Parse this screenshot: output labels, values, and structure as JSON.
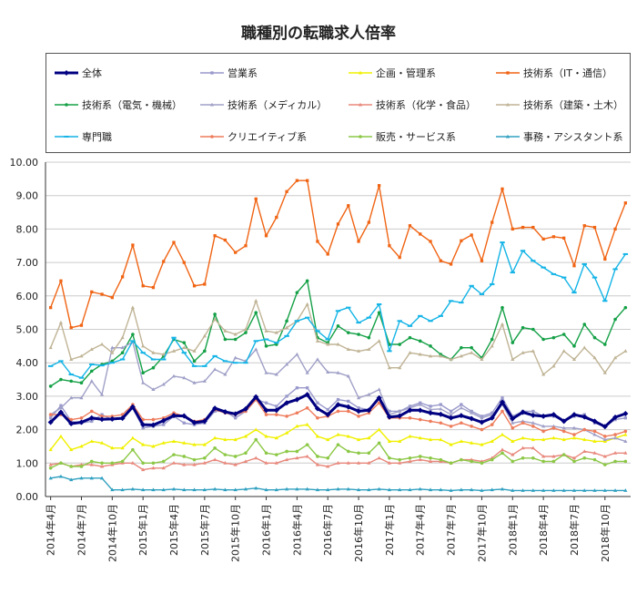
{
  "chart_data": {
    "type": "line",
    "title": "職種別の転職求人倍率",
    "xlabel": "",
    "ylabel": "",
    "ylim": [
      0,
      10
    ],
    "y_ticks": [
      "0.00",
      "1.00",
      "2.00",
      "3.00",
      "4.00",
      "5.00",
      "6.00",
      "7.00",
      "8.00",
      "9.00",
      "10.00"
    ],
    "grid": true,
    "legend_position": "top",
    "x": [
      "2014年4月",
      "2014年5月",
      "2014年6月",
      "2014年7月",
      "2014年8月",
      "2014年9月",
      "2014年10月",
      "2014年11月",
      "2014年12月",
      "2015年1月",
      "2015年2月",
      "2015年3月",
      "2015年4月",
      "2015年5月",
      "2015年6月",
      "2015年7月",
      "2015年8月",
      "2015年9月",
      "2015年10月",
      "2015年11月",
      "2015年12月",
      "2016年1月",
      "2016年2月",
      "2016年3月",
      "2016年4月",
      "2016年5月",
      "2016年6月",
      "2016年7月",
      "2016年8月",
      "2016年9月",
      "2016年10月",
      "2016年11月",
      "2016年12月",
      "2017年1月",
      "2017年2月",
      "2017年3月",
      "2017年4月",
      "2017年5月",
      "2017年6月",
      "2017年7月",
      "2017年8月",
      "2017年9月",
      "2017年10月",
      "2017年11月",
      "2017年12月",
      "2018年1月",
      "2018年2月",
      "2018年3月",
      "2018年4月",
      "2018年5月",
      "2018年6月",
      "2018年7月",
      "2018年8月",
      "2018年9月",
      "2018年10月",
      "2018年11月",
      "2018年12月"
    ],
    "x_tick_labels": [
      "2014年4月",
      "2014年7月",
      "2014年10月",
      "2015年1月",
      "2015年4月",
      "2015年7月",
      "2015年10月",
      "2016年1月",
      "2016年4月",
      "2016年7月",
      "2016年10月",
      "2017年1月",
      "2017年4月",
      "2017年7月",
      "2017年10月",
      "2018年1月",
      "2018年4月",
      "2018年7月",
      "2018年10月"
    ],
    "series": [
      {
        "name": "全体",
        "color": "#000080",
        "marker": "diamond",
        "bold": true,
        "values": [
          2.22,
          2.52,
          2.18,
          2.22,
          2.35,
          2.31,
          2.32,
          2.34,
          2.68,
          2.15,
          2.14,
          2.27,
          2.42,
          2.41,
          2.21,
          2.25,
          2.64,
          2.53,
          2.47,
          2.62,
          2.98,
          2.58,
          2.58,
          2.8,
          2.9,
          3.05,
          2.63,
          2.45,
          2.75,
          2.68,
          2.55,
          2.58,
          2.95,
          2.38,
          2.41,
          2.58,
          2.58,
          2.5,
          2.46,
          2.35,
          2.42,
          2.33,
          2.22,
          2.35,
          2.82,
          2.33,
          2.52,
          2.43,
          2.4,
          2.45,
          2.25,
          2.45,
          2.38,
          2.25,
          2.09,
          2.37,
          2.48
        ]
      },
      {
        "name": "営業系",
        "color": "#9999cc",
        "marker": "square",
        "values": [
          2.35,
          2.72,
          2.25,
          2.2,
          2.25,
          2.45,
          2.3,
          2.35,
          2.65,
          2.05,
          2.1,
          2.15,
          2.4,
          2.2,
          2.15,
          2.2,
          2.55,
          2.55,
          2.35,
          2.55,
          2.9,
          2.8,
          2.7,
          3.0,
          3.25,
          3.25,
          2.8,
          2.6,
          2.9,
          2.85,
          2.65,
          2.6,
          2.95,
          2.55,
          2.55,
          2.7,
          2.8,
          2.7,
          2.75,
          2.55,
          2.75,
          2.55,
          2.4,
          2.5,
          2.95,
          2.4,
          2.55,
          2.55,
          2.4,
          2.4,
          2.25,
          2.4,
          2.45,
          2.2,
          2.1,
          2.3,
          2.35
        ]
      },
      {
        "name": "企画・管理系",
        "color": "#f0f000",
        "marker": "triangle",
        "values": [
          1.4,
          1.8,
          1.4,
          1.5,
          1.65,
          1.6,
          1.45,
          1.45,
          1.75,
          1.55,
          1.5,
          1.6,
          1.65,
          1.6,
          1.55,
          1.55,
          1.75,
          1.7,
          1.7,
          1.8,
          2.0,
          1.8,
          1.75,
          1.9,
          2.1,
          2.15,
          1.8,
          1.7,
          1.85,
          1.8,
          1.7,
          1.75,
          2.0,
          1.65,
          1.65,
          1.8,
          1.75,
          1.7,
          1.7,
          1.55,
          1.65,
          1.6,
          1.55,
          1.65,
          1.85,
          1.65,
          1.75,
          1.7,
          1.7,
          1.75,
          1.7,
          1.75,
          1.7,
          1.65,
          1.65,
          1.75,
          1.85
        ]
      },
      {
        "name": "技術系（IT・通信）",
        "color": "#f06414",
        "marker": "square",
        "values": [
          5.65,
          6.45,
          5.05,
          5.12,
          6.12,
          6.05,
          5.95,
          6.57,
          7.52,
          6.3,
          6.25,
          7.03,
          7.6,
          7.0,
          6.3,
          6.35,
          7.8,
          7.67,
          7.3,
          7.5,
          8.9,
          7.8,
          8.35,
          9.12,
          9.45,
          9.45,
          7.63,
          7.25,
          8.15,
          8.7,
          7.63,
          8.2,
          9.3,
          7.5,
          7.15,
          8.1,
          7.85,
          7.63,
          7.05,
          6.95,
          7.65,
          7.82,
          7.05,
          8.2,
          9.2,
          8.0,
          8.05,
          8.05,
          7.7,
          7.77,
          7.73,
          6.9,
          8.1,
          8.05,
          7.1,
          8.0,
          8.78
        ]
      },
      {
        "name": "技術系（電気・機械）",
        "color": "#14a046",
        "marker": "circle",
        "values": [
          3.3,
          3.5,
          3.45,
          3.4,
          3.75,
          3.95,
          4.05,
          4.3,
          4.85,
          3.7,
          3.85,
          4.2,
          4.7,
          4.6,
          4.05,
          4.35,
          5.45,
          4.7,
          4.7,
          4.9,
          5.5,
          4.5,
          4.55,
          5.25,
          6.1,
          6.45,
          4.75,
          4.6,
          5.1,
          4.9,
          4.85,
          4.75,
          5.5,
          4.55,
          4.55,
          4.75,
          4.65,
          4.5,
          4.25,
          4.1,
          4.45,
          4.45,
          4.15,
          4.7,
          5.65,
          4.6,
          5.05,
          5.0,
          4.7,
          4.75,
          4.85,
          4.5,
          5.15,
          4.75,
          4.55,
          5.3,
          5.65
        ]
      },
      {
        "name": "技術系（メディカル）",
        "color": "#a0a0c8",
        "marker": "triangle",
        "values": [
          2.45,
          2.65,
          2.95,
          2.95,
          3.45,
          3.05,
          4.45,
          4.45,
          4.62,
          3.4,
          3.2,
          3.35,
          3.6,
          3.55,
          3.4,
          3.45,
          3.8,
          3.65,
          4.15,
          4.05,
          4.4,
          3.7,
          3.65,
          3.95,
          4.25,
          3.7,
          4.1,
          3.72,
          3.7,
          3.6,
          2.95,
          3.05,
          3.2,
          2.45,
          2.55,
          2.65,
          2.75,
          2.6,
          2.62,
          2.45,
          2.65,
          2.5,
          2.35,
          2.45,
          2.75,
          2.2,
          2.25,
          2.2,
          2.1,
          2.1,
          2.05,
          2.05,
          2.0,
          1.85,
          1.7,
          1.75,
          1.65
        ]
      },
      {
        "name": "技術系（化学・食品）",
        "color": "#e8887c",
        "marker": "triangle",
        "values": [
          0.95,
          1.0,
          0.9,
          0.95,
          0.95,
          0.9,
          0.95,
          1.0,
          1.0,
          0.8,
          0.85,
          0.85,
          1.0,
          0.95,
          0.95,
          1.0,
          1.1,
          1.0,
          0.95,
          1.05,
          1.15,
          1.0,
          1.0,
          1.1,
          1.15,
          1.2,
          0.95,
          0.9,
          1.0,
          1.0,
          1.0,
          1.0,
          1.15,
          1.0,
          1.0,
          1.05,
          1.1,
          1.05,
          1.05,
          1.0,
          1.1,
          1.1,
          1.05,
          1.15,
          1.4,
          1.25,
          1.45,
          1.45,
          1.2,
          1.2,
          1.25,
          1.15,
          1.35,
          1.3,
          1.2,
          1.3,
          1.3
        ]
      },
      {
        "name": "技術系（建築・土木）",
        "color": "#c0b496",
        "marker": "triangle",
        "values": [
          4.45,
          5.2,
          4.1,
          4.2,
          4.4,
          4.55,
          4.3,
          4.75,
          5.65,
          4.5,
          4.3,
          4.25,
          4.35,
          4.45,
          4.35,
          4.8,
          5.3,
          4.95,
          4.85,
          5.0,
          5.85,
          4.95,
          4.9,
          5.05,
          5.25,
          5.75,
          4.65,
          4.55,
          4.55,
          4.4,
          4.35,
          4.4,
          4.65,
          3.85,
          3.85,
          4.3,
          4.25,
          4.2,
          4.2,
          4.1,
          4.2,
          4.3,
          4.1,
          4.5,
          5.15,
          4.1,
          4.3,
          4.35,
          3.65,
          3.9,
          4.35,
          4.1,
          4.45,
          4.15,
          3.7,
          4.15,
          4.35
        ]
      },
      {
        "name": "専門職",
        "color": "#14b4e6",
        "marker": "dash",
        "values": [
          3.9,
          4.05,
          3.65,
          3.55,
          3.95,
          3.92,
          4.0,
          4.1,
          4.65,
          4.3,
          4.1,
          4.1,
          4.75,
          4.3,
          3.9,
          3.9,
          4.2,
          4.05,
          4.0,
          4.0,
          4.65,
          4.7,
          4.6,
          4.8,
          5.25,
          5.35,
          4.95,
          4.7,
          5.55,
          5.65,
          5.2,
          5.35,
          5.75,
          4.35,
          5.25,
          5.1,
          5.4,
          5.25,
          5.4,
          5.85,
          5.8,
          6.3,
          6.05,
          6.35,
          7.6,
          6.7,
          7.35,
          7.05,
          6.85,
          6.65,
          6.55,
          6.1,
          6.95,
          6.55,
          5.85,
          6.8,
          7.25
        ]
      },
      {
        "name": "クリエイティブ系",
        "color": "#ee7c5c",
        "marker": "circle",
        "values": [
          2.45,
          2.45,
          2.3,
          2.35,
          2.55,
          2.4,
          2.4,
          2.45,
          2.75,
          2.3,
          2.3,
          2.35,
          2.5,
          2.4,
          2.25,
          2.3,
          2.6,
          2.5,
          2.45,
          2.55,
          2.9,
          2.45,
          2.45,
          2.4,
          2.5,
          2.65,
          2.35,
          2.4,
          2.55,
          2.55,
          2.4,
          2.5,
          2.8,
          2.35,
          2.35,
          2.35,
          2.3,
          2.25,
          2.2,
          2.1,
          2.2,
          2.1,
          2.0,
          2.15,
          2.55,
          2.05,
          2.2,
          2.1,
          1.95,
          2.05,
          1.95,
          1.85,
          2.0,
          1.95,
          1.8,
          1.85,
          1.95
        ]
      },
      {
        "name": "販売・サービス系",
        "color": "#8cc846",
        "marker": "circle",
        "values": [
          0.85,
          1.0,
          0.9,
          0.9,
          1.05,
          1.0,
          1.0,
          1.05,
          1.4,
          1.0,
          1.0,
          1.05,
          1.25,
          1.2,
          1.1,
          1.15,
          1.45,
          1.25,
          1.2,
          1.3,
          1.7,
          1.3,
          1.25,
          1.35,
          1.35,
          1.55,
          1.2,
          1.15,
          1.55,
          1.35,
          1.3,
          1.3,
          1.6,
          1.15,
          1.1,
          1.15,
          1.2,
          1.15,
          1.1,
          1.0,
          1.1,
          1.05,
          1.0,
          1.1,
          1.3,
          1.05,
          1.15,
          1.15,
          1.05,
          1.05,
          1.25,
          1.05,
          1.15,
          1.1,
          0.95,
          1.05,
          1.05
        ]
      },
      {
        "name": "事務・アシスタント系",
        "color": "#30a0c0",
        "marker": "triangle",
        "values": [
          0.55,
          0.6,
          0.5,
          0.55,
          0.55,
          0.55,
          0.2,
          0.2,
          0.22,
          0.2,
          0.2,
          0.2,
          0.22,
          0.2,
          0.2,
          0.2,
          0.22,
          0.2,
          0.2,
          0.22,
          0.25,
          0.2,
          0.2,
          0.22,
          0.22,
          0.22,
          0.2,
          0.2,
          0.22,
          0.22,
          0.2,
          0.2,
          0.22,
          0.2,
          0.2,
          0.2,
          0.22,
          0.2,
          0.2,
          0.18,
          0.2,
          0.2,
          0.18,
          0.2,
          0.22,
          0.18,
          0.18,
          0.18,
          0.18,
          0.18,
          0.18,
          0.18,
          0.18,
          0.18,
          0.18,
          0.18,
          0.18
        ]
      }
    ]
  }
}
